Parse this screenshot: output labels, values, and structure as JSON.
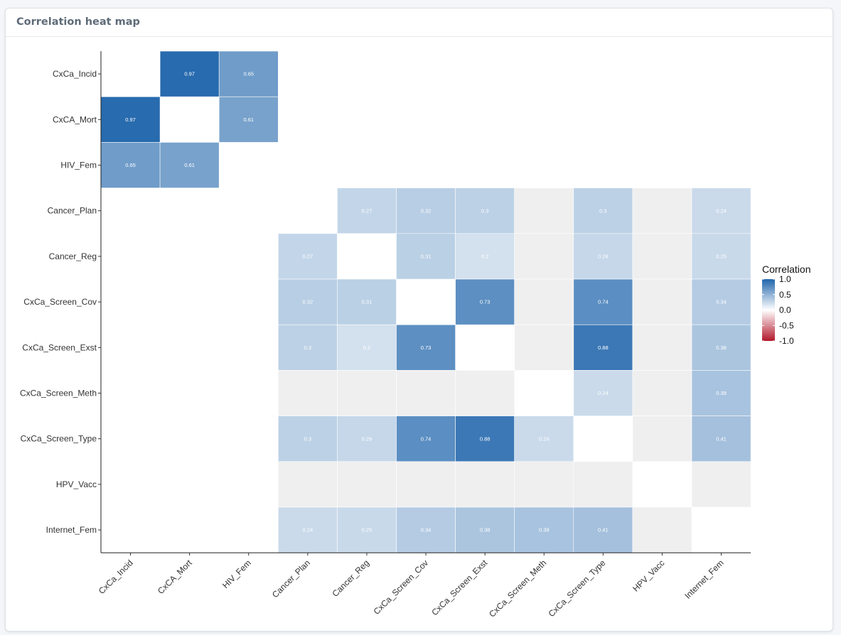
{
  "panel": {
    "title": "Correlation heat map"
  },
  "chart_data": {
    "type": "heatmap",
    "title": "",
    "xlabel": "",
    "ylabel": "",
    "variables": [
      "CxCa_Incid",
      "CxCA_Mort",
      "HIV_Fem",
      "Cancer_Plan",
      "Cancer_Reg",
      "CxCa_Screen_Cov",
      "CxCa_Screen_Exst",
      "CxCa_Screen_Meth",
      "CxCa_Screen_Type",
      "HPV_Vacc",
      "Internet_Fem"
    ],
    "cells": [
      {
        "row": "CxCa_Incid",
        "col": "CxCA_Mort",
        "value": 0.97
      },
      {
        "row": "CxCa_Incid",
        "col": "HIV_Fem",
        "value": 0.65
      },
      {
        "row": "CxCA_Mort",
        "col": "CxCa_Incid",
        "value": 0.97
      },
      {
        "row": "CxCA_Mort",
        "col": "HIV_Fem",
        "value": 0.61
      },
      {
        "row": "HIV_Fem",
        "col": "CxCa_Incid",
        "value": 0.65
      },
      {
        "row": "HIV_Fem",
        "col": "CxCA_Mort",
        "value": 0.61
      },
      {
        "row": "Cancer_Plan",
        "col": "Cancer_Reg",
        "value": 0.27
      },
      {
        "row": "Cancer_Plan",
        "col": "CxCa_Screen_Cov",
        "value": 0.32
      },
      {
        "row": "Cancer_Plan",
        "col": "CxCa_Screen_Exst",
        "value": 0.3
      },
      {
        "row": "Cancer_Plan",
        "col": "CxCa_Screen_Meth",
        "value": null
      },
      {
        "row": "Cancer_Plan",
        "col": "CxCa_Screen_Type",
        "value": 0.3
      },
      {
        "row": "Cancer_Plan",
        "col": "HPV_Vacc",
        "value": null
      },
      {
        "row": "Cancer_Plan",
        "col": "Internet_Fem",
        "value": 0.24
      },
      {
        "row": "Cancer_Reg",
        "col": "Cancer_Plan",
        "value": 0.27
      },
      {
        "row": "Cancer_Reg",
        "col": "CxCa_Screen_Cov",
        "value": 0.31
      },
      {
        "row": "Cancer_Reg",
        "col": "CxCa_Screen_Exst",
        "value": 0.2
      },
      {
        "row": "Cancer_Reg",
        "col": "CxCa_Screen_Meth",
        "value": null
      },
      {
        "row": "Cancer_Reg",
        "col": "CxCa_Screen_Type",
        "value": 0.26
      },
      {
        "row": "Cancer_Reg",
        "col": "HPV_Vacc",
        "value": null
      },
      {
        "row": "Cancer_Reg",
        "col": "Internet_Fem",
        "value": 0.25
      },
      {
        "row": "CxCa_Screen_Cov",
        "col": "Cancer_Plan",
        "value": 0.32
      },
      {
        "row": "CxCa_Screen_Cov",
        "col": "Cancer_Reg",
        "value": 0.31
      },
      {
        "row": "CxCa_Screen_Cov",
        "col": "CxCa_Screen_Exst",
        "value": 0.73
      },
      {
        "row": "CxCa_Screen_Cov",
        "col": "CxCa_Screen_Meth",
        "value": null
      },
      {
        "row": "CxCa_Screen_Cov",
        "col": "CxCa_Screen_Type",
        "value": 0.74
      },
      {
        "row": "CxCa_Screen_Cov",
        "col": "HPV_Vacc",
        "value": null
      },
      {
        "row": "CxCa_Screen_Cov",
        "col": "Internet_Fem",
        "value": 0.34
      },
      {
        "row": "CxCa_Screen_Exst",
        "col": "Cancer_Plan",
        "value": 0.3
      },
      {
        "row": "CxCa_Screen_Exst",
        "col": "Cancer_Reg",
        "value": 0.2
      },
      {
        "row": "CxCa_Screen_Exst",
        "col": "CxCa_Screen_Cov",
        "value": 0.73
      },
      {
        "row": "CxCa_Screen_Exst",
        "col": "CxCa_Screen_Meth",
        "value": null
      },
      {
        "row": "CxCa_Screen_Exst",
        "col": "CxCa_Screen_Type",
        "value": 0.88
      },
      {
        "row": "CxCa_Screen_Exst",
        "col": "HPV_Vacc",
        "value": null
      },
      {
        "row": "CxCa_Screen_Exst",
        "col": "Internet_Fem",
        "value": 0.38
      },
      {
        "row": "CxCa_Screen_Meth",
        "col": "Cancer_Plan",
        "value": null
      },
      {
        "row": "CxCa_Screen_Meth",
        "col": "Cancer_Reg",
        "value": null
      },
      {
        "row": "CxCa_Screen_Meth",
        "col": "CxCa_Screen_Cov",
        "value": null
      },
      {
        "row": "CxCa_Screen_Meth",
        "col": "CxCa_Screen_Exst",
        "value": null
      },
      {
        "row": "CxCa_Screen_Meth",
        "col": "CxCa_Screen_Type",
        "value": 0.24
      },
      {
        "row": "CxCa_Screen_Meth",
        "col": "HPV_Vacc",
        "value": null
      },
      {
        "row": "CxCa_Screen_Meth",
        "col": "Internet_Fem",
        "value": 0.39
      },
      {
        "row": "CxCa_Screen_Type",
        "col": "Cancer_Plan",
        "value": 0.3
      },
      {
        "row": "CxCa_Screen_Type",
        "col": "Cancer_Reg",
        "value": 0.26
      },
      {
        "row": "CxCa_Screen_Type",
        "col": "CxCa_Screen_Cov",
        "value": 0.74
      },
      {
        "row": "CxCa_Screen_Type",
        "col": "CxCa_Screen_Exst",
        "value": 0.88
      },
      {
        "row": "CxCa_Screen_Type",
        "col": "CxCa_Screen_Meth",
        "value": 0.24
      },
      {
        "row": "CxCa_Screen_Type",
        "col": "HPV_Vacc",
        "value": null
      },
      {
        "row": "CxCa_Screen_Type",
        "col": "Internet_Fem",
        "value": 0.41
      },
      {
        "row": "HPV_Vacc",
        "col": "Cancer_Plan",
        "value": null
      },
      {
        "row": "HPV_Vacc",
        "col": "Cancer_Reg",
        "value": null
      },
      {
        "row": "HPV_Vacc",
        "col": "CxCa_Screen_Cov",
        "value": null
      },
      {
        "row": "HPV_Vacc",
        "col": "CxCa_Screen_Exst",
        "value": null
      },
      {
        "row": "HPV_Vacc",
        "col": "CxCa_Screen_Meth",
        "value": null
      },
      {
        "row": "HPV_Vacc",
        "col": "CxCa_Screen_Type",
        "value": null
      },
      {
        "row": "HPV_Vacc",
        "col": "Internet_Fem",
        "value": null
      },
      {
        "row": "Internet_Fem",
        "col": "Cancer_Plan",
        "value": 0.24
      },
      {
        "row": "Internet_Fem",
        "col": "Cancer_Reg",
        "value": 0.25
      },
      {
        "row": "Internet_Fem",
        "col": "CxCa_Screen_Cov",
        "value": 0.34
      },
      {
        "row": "Internet_Fem",
        "col": "CxCa_Screen_Exst",
        "value": 0.38
      },
      {
        "row": "Internet_Fem",
        "col": "CxCa_Screen_Meth",
        "value": 0.39
      },
      {
        "row": "Internet_Fem",
        "col": "CxCa_Screen_Type",
        "value": 0.41
      },
      {
        "row": "Internet_Fem",
        "col": "HPV_Vacc",
        "value": null
      }
    ],
    "legend": {
      "title": "Correlation",
      "placement": "right",
      "range": [
        -1.0,
        1.0
      ],
      "ticks": [
        "1.0",
        "0.5",
        "0.0",
        "-0.5",
        "-1.0"
      ],
      "colors": {
        "low": "#b2182b",
        "mid": "#ffffff",
        "high": "#2166ac",
        "na": "#efefef"
      }
    }
  }
}
